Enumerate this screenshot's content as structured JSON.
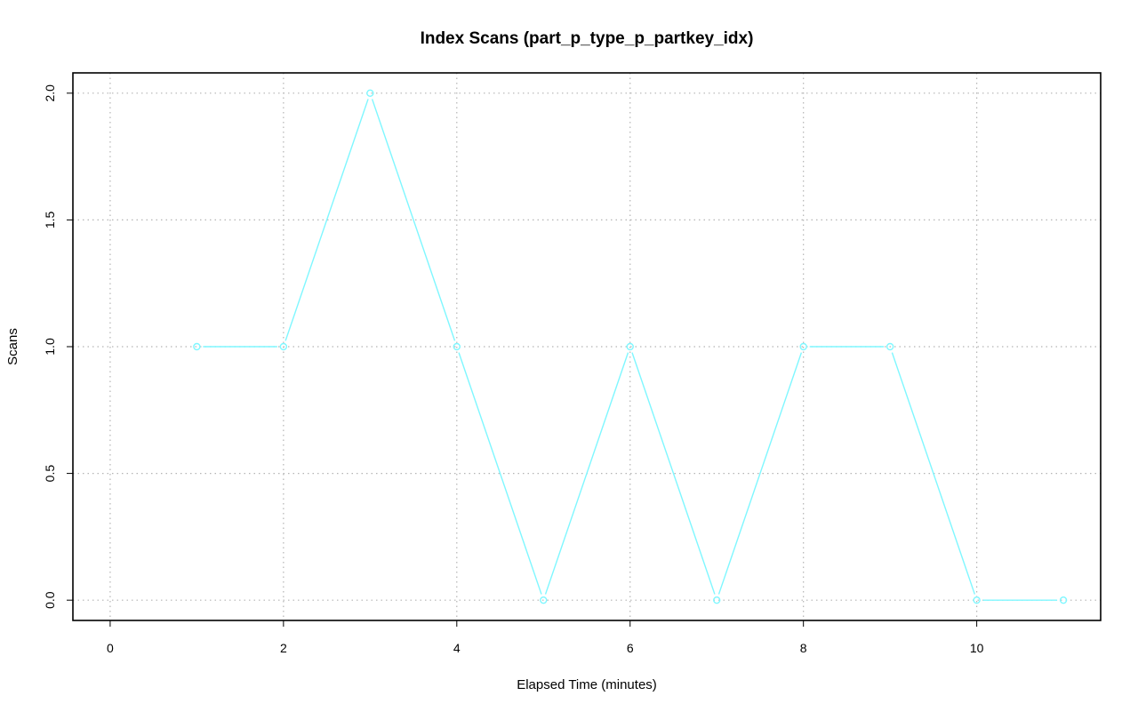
{
  "chart_data": {
    "type": "line",
    "title": "Index Scans (part_p_type_p_partkey_idx)",
    "xlabel": "Elapsed Time (minutes)",
    "ylabel": "Scans",
    "xlim": [
      -0.43,
      11.43
    ],
    "ylim": [
      -0.08,
      2.08
    ],
    "x_ticks": [
      0,
      2,
      4,
      6,
      8,
      10
    ],
    "y_ticks": [
      0.0,
      0.5,
      1.0,
      1.5,
      2.0
    ],
    "x_tick_labels": [
      "0",
      "2",
      "4",
      "6",
      "8",
      "10"
    ],
    "y_tick_labels": [
      "0.0",
      "0.5",
      "1.0",
      "1.5",
      "2.0"
    ],
    "grid": true,
    "series": [
      {
        "color": "#7ff7ff",
        "marker": "open-circle",
        "x": [
          1,
          2,
          3,
          4,
          5,
          6,
          7,
          8,
          9,
          10,
          11
        ],
        "y": [
          1,
          1,
          2,
          1,
          0,
          1,
          0,
          1,
          1,
          0,
          0
        ]
      }
    ]
  }
}
